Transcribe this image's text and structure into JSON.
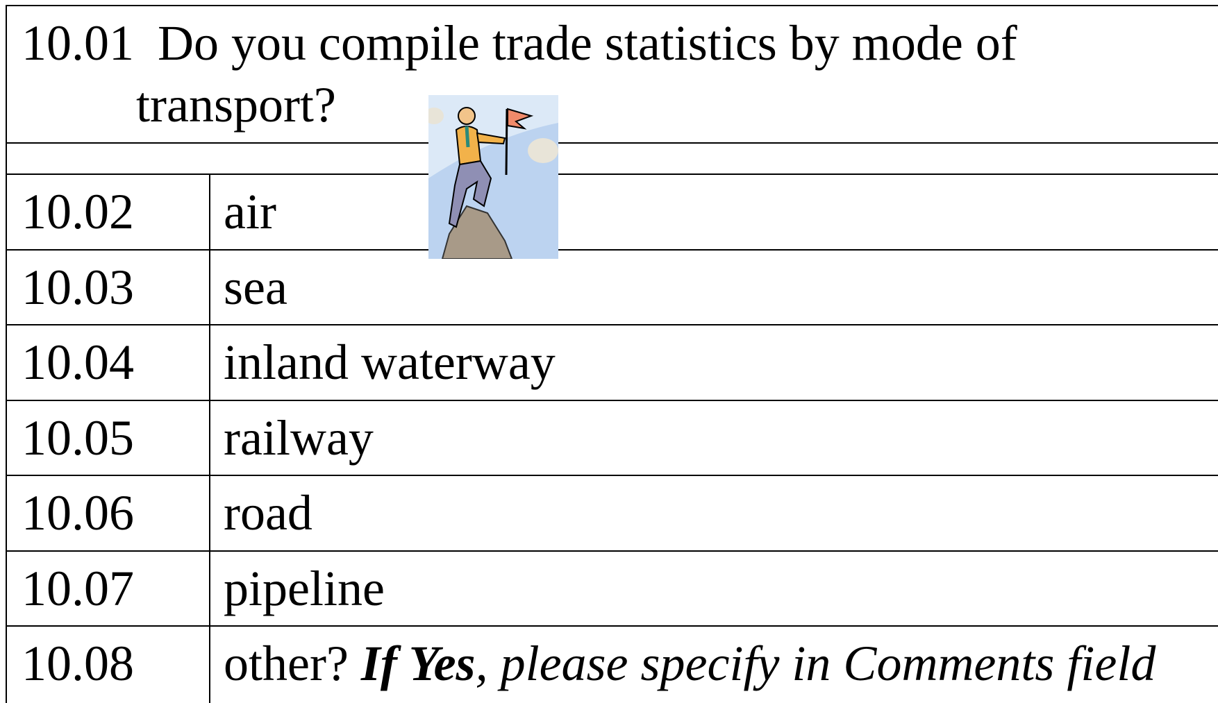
{
  "question": {
    "number": "10.01",
    "text": "Do you compile trade statistics by mode of transport?"
  },
  "rows": [
    {
      "number": "10.02",
      "label": "air"
    },
    {
      "number": "10.03",
      "label": "sea"
    },
    {
      "number": "10.04",
      "label": "inland waterway"
    },
    {
      "number": "10.05",
      "label": "railway"
    },
    {
      "number": "10.06",
      "label": "road"
    },
    {
      "number": "10.07",
      "label": "pipeline"
    },
    {
      "number": "10.08",
      "label": "other?",
      "emphasis": "If Yes",
      "note": ", please specify in Comments field"
    }
  ]
}
